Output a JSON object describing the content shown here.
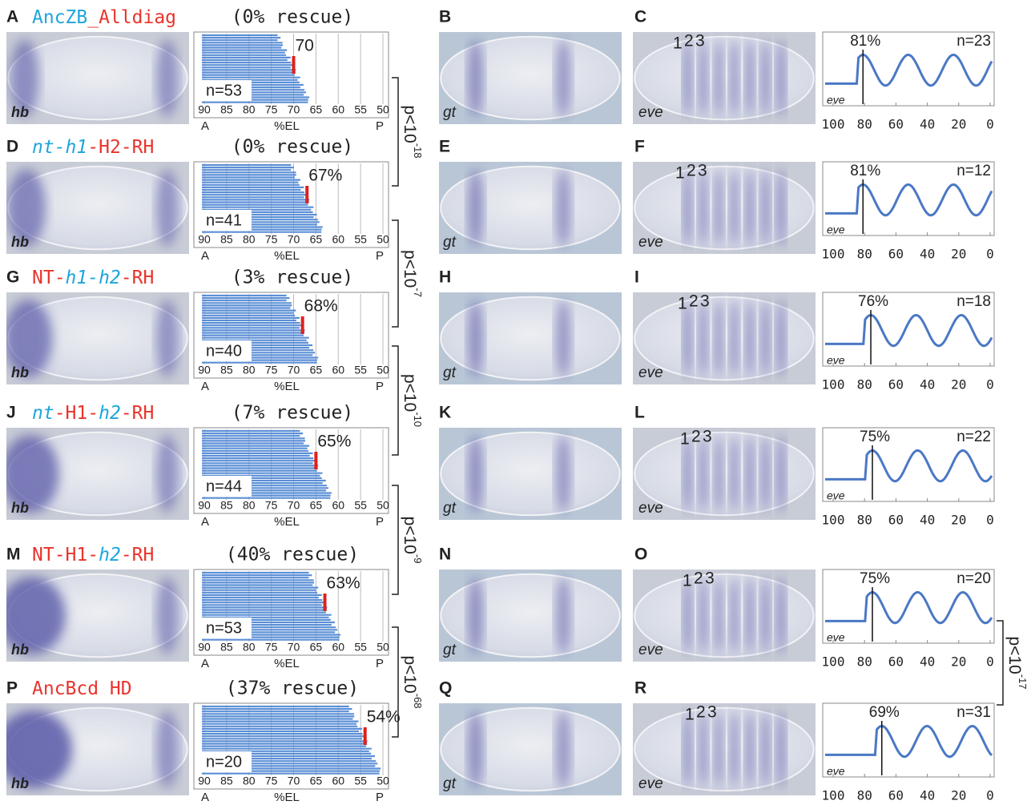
{
  "left_rows": [
    {
      "letter": "A",
      "construct": [
        {
          "text": "AncZB",
          "color": "#1ea5dc",
          "italic": false
        },
        {
          "text": "_Alldiag",
          "color": "#e8342c",
          "italic": false
        }
      ],
      "rescue": "(0% rescue)",
      "stain": "hb",
      "chart": {
        "type": "bar",
        "marker": {
          "value": 70,
          "label": "70"
        },
        "n": "n=53",
        "xlim": [
          90,
          50
        ],
        "xticks": [
          90,
          85,
          80,
          75,
          70,
          65,
          60,
          55,
          50
        ],
        "xlabel": "%EL",
        "anterior": "A",
        "posterior": "P"
      }
    },
    {
      "letter": "D",
      "construct": [
        {
          "text": "nt-h1",
          "color": "#1ea5dc",
          "italic": true
        },
        {
          "text": "-H2-RH",
          "color": "#e8342c",
          "italic": false
        }
      ],
      "rescue": "(0% rescue)",
      "stain": "hb",
      "chart": {
        "type": "bar",
        "marker": {
          "value": 67,
          "label": "67%"
        },
        "n": "n=41",
        "xlim": [
          90,
          50
        ],
        "xticks": [
          90,
          85,
          80,
          75,
          70,
          65,
          60,
          55,
          50
        ],
        "xlabel": "%EL",
        "anterior": "A",
        "posterior": "P"
      }
    },
    {
      "letter": "G",
      "construct": [
        {
          "text": "NT-",
          "color": "#e8342c",
          "italic": false
        },
        {
          "text": "h1-h2",
          "color": "#1ea5dc",
          "italic": true
        },
        {
          "text": "-RH",
          "color": "#e8342c",
          "italic": false
        }
      ],
      "rescue": "(3% rescue)",
      "stain": "hb",
      "chart": {
        "type": "bar",
        "marker": {
          "value": 68,
          "label": "68%"
        },
        "n": "n=40",
        "xlim": [
          90,
          50
        ],
        "xticks": [
          90,
          85,
          80,
          75,
          70,
          65,
          60,
          55,
          50
        ],
        "xlabel": "%EL",
        "anterior": "A",
        "posterior": "P"
      }
    },
    {
      "letter": "J",
      "construct": [
        {
          "text": "nt",
          "color": "#1ea5dc",
          "italic": true
        },
        {
          "text": "-H1-",
          "color": "#e8342c",
          "italic": false
        },
        {
          "text": "h2",
          "color": "#1ea5dc",
          "italic": true
        },
        {
          "text": "-RH",
          "color": "#e8342c",
          "italic": false
        }
      ],
      "rescue": "(7% rescue)",
      "stain": "hb",
      "chart": {
        "type": "bar",
        "marker": {
          "value": 65,
          "label": "65%"
        },
        "n": "n=44",
        "xlim": [
          90,
          50
        ],
        "xticks": [
          90,
          85,
          80,
          75,
          70,
          65,
          60,
          55,
          50
        ],
        "xlabel": "%EL",
        "anterior": "A",
        "posterior": "P"
      }
    },
    {
      "letter": "M",
      "construct": [
        {
          "text": "NT-H1-",
          "color": "#e8342c",
          "italic": false
        },
        {
          "text": "h2",
          "color": "#1ea5dc",
          "italic": true
        },
        {
          "text": "-RH",
          "color": "#e8342c",
          "italic": false
        }
      ],
      "rescue": "(40% rescue)",
      "stain": "hb",
      "chart": {
        "type": "bar",
        "marker": {
          "value": 63,
          "label": "63%"
        },
        "n": "n=53",
        "xlim": [
          90,
          50
        ],
        "xticks": [
          90,
          85,
          80,
          75,
          70,
          65,
          60,
          55,
          50
        ],
        "xlabel": "%EL",
        "anterior": "A",
        "posterior": "P"
      }
    },
    {
      "letter": "P",
      "construct": [
        {
          "text": "AncBcd HD",
          "color": "#e8342c",
          "italic": false
        }
      ],
      "rescue": "(37% rescue)",
      "stain": "hb",
      "chart": {
        "type": "bar",
        "marker": {
          "value": 54,
          "label": "54%"
        },
        "n": "n=20",
        "xlim": [
          90,
          50
        ],
        "xticks": [
          90,
          85,
          80,
          75,
          70,
          65,
          60,
          55,
          50
        ],
        "xlabel": "%EL",
        "anterior": "A",
        "posterior": "P"
      }
    }
  ],
  "right_rows": [
    {
      "letter_gt": "B",
      "stain_gt": "gt",
      "letter_eve": "C",
      "stain_eve": "eve",
      "stripes": [
        "1",
        "2",
        "3"
      ],
      "profile": {
        "type": "line",
        "peak": {
          "value": 81,
          "label": "81%"
        },
        "n": "n=23",
        "xlim": [
          100,
          0
        ],
        "xticks": [
          100,
          80,
          60,
          40,
          20,
          0
        ],
        "trace_label": "eve"
      }
    },
    {
      "letter_gt": "E",
      "stain_gt": "gt",
      "letter_eve": "F",
      "stain_eve": "eve",
      "stripes": [
        "1",
        "2",
        "3"
      ],
      "profile": {
        "type": "line",
        "peak": {
          "value": 81,
          "label": "81%"
        },
        "n": "n=12",
        "xlim": [
          100,
          0
        ],
        "xticks": [
          100,
          80,
          60,
          40,
          20,
          0
        ],
        "trace_label": "eve"
      }
    },
    {
      "letter_gt": "H",
      "stain_gt": "gt",
      "letter_eve": "I",
      "stain_eve": "eve",
      "stripes": [
        "1",
        "2",
        "3"
      ],
      "profile": {
        "type": "line",
        "peak": {
          "value": 76,
          "label": "76%"
        },
        "n": "n=18",
        "xlim": [
          100,
          0
        ],
        "xticks": [
          100,
          80,
          60,
          40,
          20,
          0
        ],
        "trace_label": "eve"
      }
    },
    {
      "letter_gt": "K",
      "stain_gt": "gt",
      "letter_eve": "L",
      "stain_eve": "eve",
      "stripes": [
        "1",
        "2",
        "3"
      ],
      "profile": {
        "type": "line",
        "peak": {
          "value": 75,
          "label": "75%"
        },
        "n": "n=22",
        "xlim": [
          100,
          0
        ],
        "xticks": [
          100,
          80,
          60,
          40,
          20,
          0
        ],
        "trace_label": "eve"
      }
    },
    {
      "letter_gt": "N",
      "stain_gt": "gt",
      "letter_eve": "O",
      "stain_eve": "eve",
      "stripes": [
        "1",
        "2",
        "3"
      ],
      "profile": {
        "type": "line",
        "peak": {
          "value": 75,
          "label": "75%"
        },
        "n": "n=20",
        "xlim": [
          100,
          0
        ],
        "xticks": [
          100,
          80,
          60,
          40,
          20,
          0
        ],
        "trace_label": "eve"
      }
    },
    {
      "letter_gt": "Q",
      "stain_gt": "gt",
      "letter_eve": "R",
      "stain_eve": "eve",
      "stripes": [
        "1",
        "2",
        "3"
      ],
      "profile": {
        "type": "line",
        "peak": {
          "value": 69,
          "label": "69%"
        },
        "n": "n=31",
        "xlim": [
          100,
          0
        ],
        "xticks": [
          100,
          80,
          60,
          40,
          20,
          0
        ],
        "trace_label": "eve"
      }
    }
  ],
  "left_stats": [
    {
      "base": "p<10",
      "exponent": "-18"
    },
    {
      "base": "p<10",
      "exponent": "-7"
    },
    {
      "base": "p<10",
      "exponent": "-10"
    },
    {
      "base": "p<10",
      "exponent": "-9"
    },
    {
      "base": "p<10",
      "exponent": "-68"
    }
  ],
  "right_stats": [
    {
      "base": "p<10",
      "exponent": "-17"
    }
  ]
}
